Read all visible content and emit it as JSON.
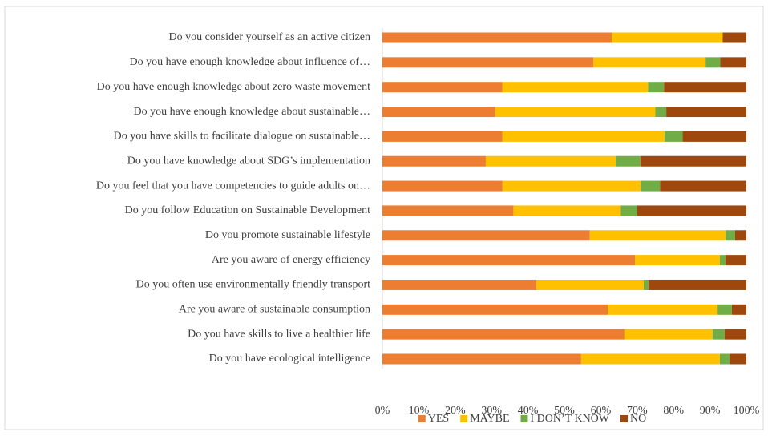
{
  "chart_data": {
    "type": "stacked-bar-horizontal",
    "categories": [
      "Do you consider yourself as an active citizen",
      "Do you have enough knowledge about influence of…",
      "Do you have enough knowledge about zero waste movement",
      "Do you have enough knowledge about sustainable…",
      "Do you have skills to facilitate dialogue on sustainable…",
      "Do you have knowledge about SDG’s implementation",
      "Do you feel that you have competencies to guide adults on…",
      "Do you follow Education on Sustainable Development",
      "Do you promote sustainable lifestyle",
      "Are you aware of energy efficiency",
      "Do you often use environmentally friendly transport",
      "Are you aware of sustainable consumption",
      "Do you have skills to live a healthier life",
      "Do you have ecological intelligence"
    ],
    "series": [
      {
        "name": "YES",
        "color": "#ED7D31",
        "values": [
          63,
          58,
          33,
          31,
          33,
          28.4,
          33,
          36,
          57,
          69.4,
          42.3,
          61.9,
          66.5,
          54.6
        ]
      },
      {
        "name": "MAYBE",
        "color": "#FFC000",
        "values": [
          30.5,
          30.8,
          40,
          44,
          44.5,
          35.7,
          38,
          29.5,
          37.3,
          23.3,
          29.5,
          30.2,
          24.2,
          38.1
        ]
      },
      {
        "name": "I DON’T KNOW",
        "color": "#70AD47",
        "values": [
          0,
          4,
          4.4,
          3,
          5,
          6.8,
          5.3,
          4.5,
          2.6,
          1.6,
          1.3,
          3.9,
          3.3,
          2.7
        ]
      },
      {
        "name": "NO",
        "color": "#9E480E",
        "values": [
          6.5,
          7.2,
          22.6,
          22,
          17.5,
          29.1,
          23.7,
          30,
          3.1,
          5.7,
          26.9,
          4,
          6,
          4.6
        ]
      }
    ],
    "xlim": [
      0,
      100
    ],
    "xticks": [
      {
        "value": 0,
        "label": "0%"
      },
      {
        "value": 10,
        "label": "10%"
      },
      {
        "value": 20,
        "label": "20%"
      },
      {
        "value": 30,
        "label": "30%"
      },
      {
        "value": 40,
        "label": "40%"
      },
      {
        "value": 50,
        "label": "50%"
      },
      {
        "value": 60,
        "label": "60%"
      },
      {
        "value": 70,
        "label": "70%"
      },
      {
        "value": 80,
        "label": "80%"
      },
      {
        "value": 90,
        "label": "90%"
      },
      {
        "value": 100,
        "label": "100%"
      }
    ],
    "legend": "bottom"
  }
}
